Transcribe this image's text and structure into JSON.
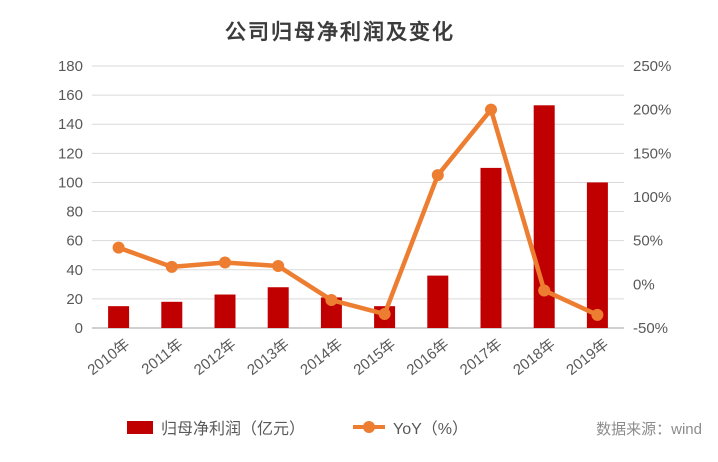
{
  "title": "公司归母净利润及变化",
  "source_note": "数据来源：wind",
  "colors": {
    "bar": "#c00000",
    "line": "#ed7d31",
    "grid": "#d9d9d9",
    "zero_line": "#c0c0c0",
    "axis_text": "#595959",
    "title_text": "#3b3b3b",
    "legend_text": "#595959",
    "source_text": "#8c8c8c",
    "background": "#ffffff"
  },
  "legend": [
    {
      "label": "归母净利润（亿元）",
      "marker": "bar-swatch"
    },
    {
      "label": "YoY（%）",
      "marker": "line-dot-swatch"
    }
  ],
  "chart_data": {
    "type": "bar+line",
    "title": "公司归母净利润及变化",
    "categories": [
      "2010年",
      "2011年",
      "2012年",
      "2013年",
      "2014年",
      "2015年",
      "2016年",
      "2017年",
      "2018年",
      "2019年"
    ],
    "series": [
      {
        "name": "归母净利润（亿元）",
        "type": "bar",
        "axis": "left",
        "values": [
          15,
          18,
          23,
          28,
          21,
          15,
          36,
          110,
          153,
          100
        ]
      },
      {
        "name": "YoY（%）",
        "type": "line",
        "axis": "right",
        "values": [
          42,
          20,
          25,
          21,
          -18,
          -34,
          125,
          200,
          -7,
          -35
        ]
      }
    ],
    "left_axis": {
      "min": 0,
      "max": 180,
      "step": 20,
      "ticks": [
        "0",
        "20",
        "40",
        "60",
        "80",
        "100",
        "120",
        "140",
        "160",
        "180"
      ]
    },
    "right_axis": {
      "min": -50,
      "max": 250,
      "step": 50,
      "ticks": [
        "-50%",
        "0%",
        "50%",
        "100%",
        "150%",
        "200%",
        "250%"
      ]
    },
    "grid": true,
    "legend_position": "bottom",
    "x_label_rotation": -38
  }
}
